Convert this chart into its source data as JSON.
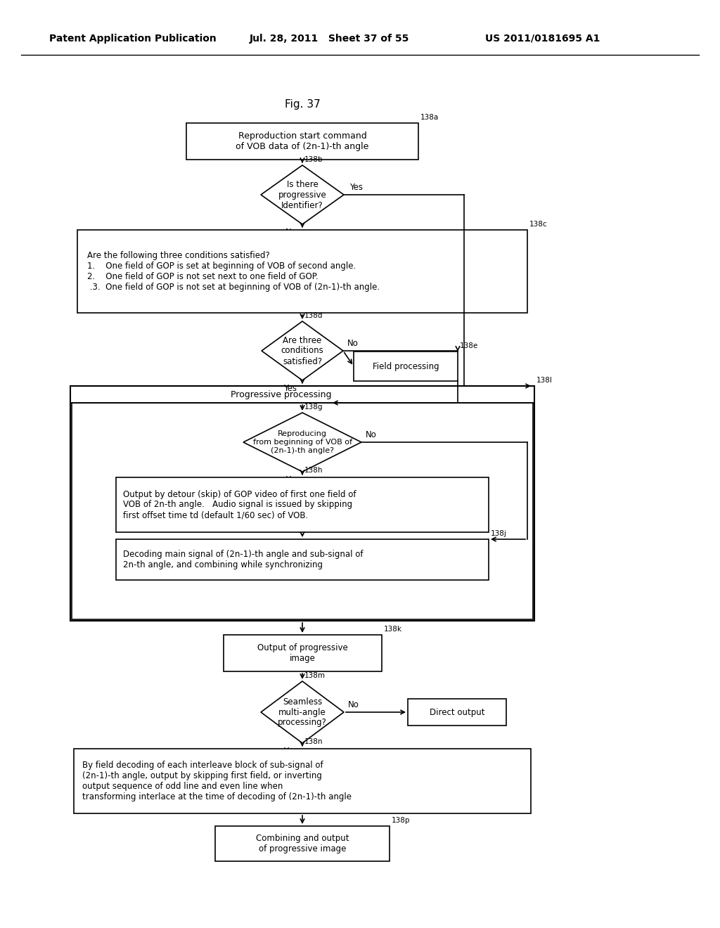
{
  "header_left": "Patent Application Publication",
  "header_center": "Jul. 28, 2011   Sheet 37 of 55",
  "header_right": "US 2011/0181695 A1",
  "title": "Fig. 37",
  "bg_color": "#ffffff",
  "138a_label": "Reproduction start command\nof VOB data of (2n-1)-th angle",
  "138b_label": "Is there\nprogressive\nIdentifier?",
  "138c_label": "Are the following three conditions satisfied?\n1.    One field of GOP is set at beginning of VOB of second angle.\n2.    One field of GOP is not set next to one field of GOP.\n .3.  One field of GOP is not set at beginning of VOB of (2n-1)-th angle.",
  "138d_label": "Are three\nconditions\nsatisfied?",
  "138e_label": "Field processing",
  "138f_label": "Progressive processing",
  "138g_label": "Reproducing\nfrom beginning of VOB of\n(2n-1)-th angle?",
  "138h_label": "Output by detour (skip) of GOP video of first one field of\nVOB of 2n-th angle.   Audio signal is issued by skipping\nfirst offset time td (default 1/60 sec) of VOB.",
  "138j_label": "Decoding main signal of (2n-1)-th angle and sub-signal of\n2n-th angle, and combining while synchronizing",
  "138k_label": "Output of progressive\nimage",
  "138m_label": "Seamless\nmulti-angle\nprocessing?",
  "direct_label": "Direct output",
  "138n_label": "By field decoding of each interleave block of sub-signal of\n(2n-1)-th angle, output by skipping first field, or inverting\noutput sequence of odd line and even line when\ntransforming interlace at the time of decoding of (2n-1)-th angle",
  "138p_label": "Combining and output\nof progressive image"
}
